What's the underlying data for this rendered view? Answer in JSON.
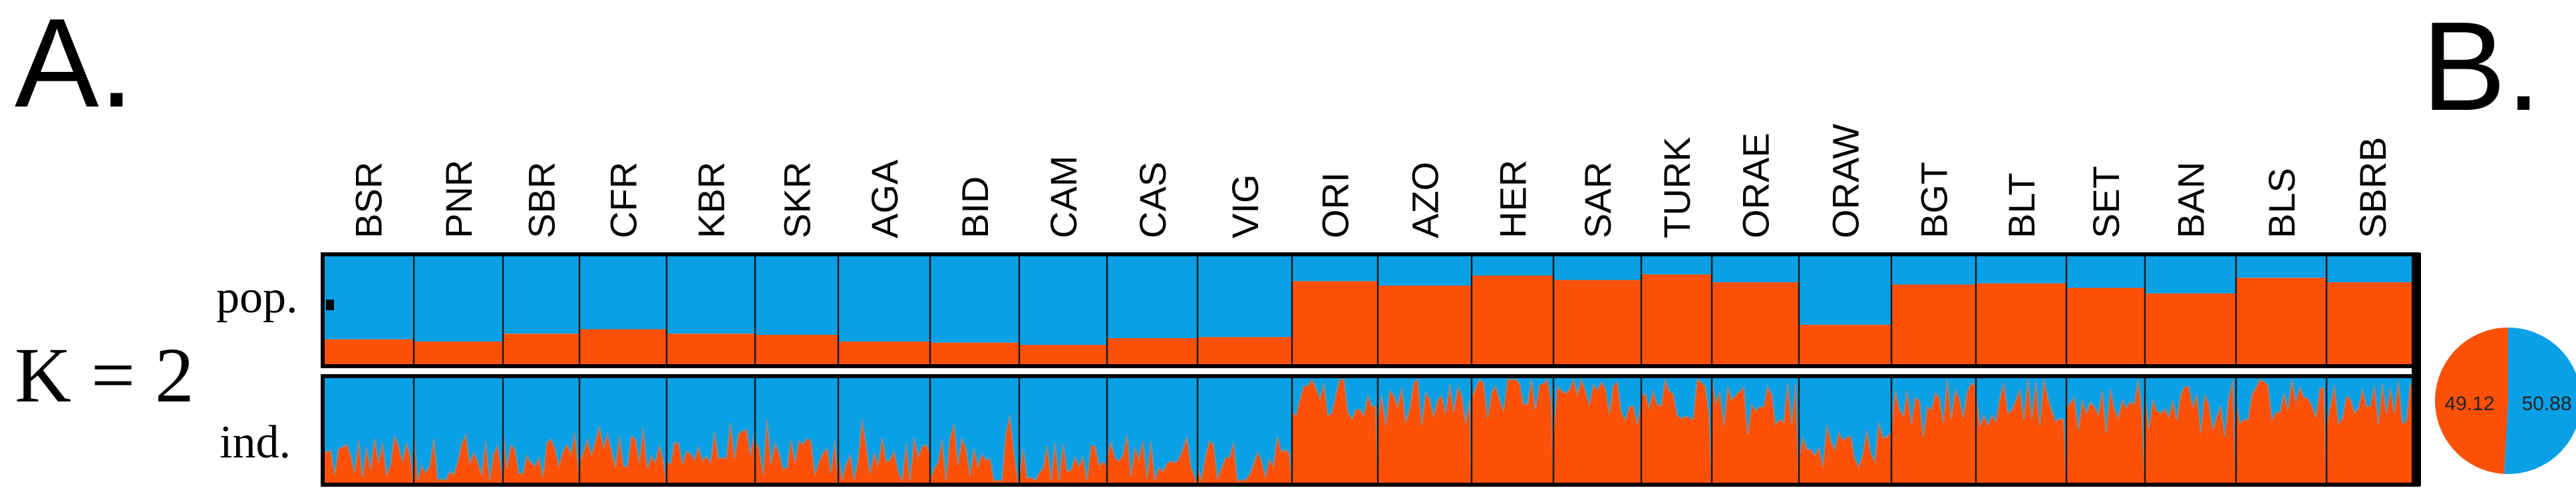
{
  "panel_a_letter": "A.",
  "panel_b_letter": "B.",
  "k_label": "K = 2",
  "pop_label": "pop.",
  "ind_label": "ind.",
  "colors": {
    "cluster1": "#0aa0e6",
    "cluster2": "#ff5008",
    "frame": "#000000",
    "divider": "#1a1a1a"
  },
  "chart_data": [
    {
      "type": "bar",
      "subtype": "stacked-admixture-population",
      "categories": [
        "BSR",
        "PNR",
        "SBR",
        "CFR",
        "KBR",
        "SKR",
        "AGA",
        "BID",
        "CAM",
        "CAS",
        "VIG",
        "ORI",
        "AZO",
        "HER",
        "SAR",
        "TURK",
        "ORAE",
        "ORAW",
        "BGT",
        "BLT",
        "SET",
        "BAN",
        "BLS",
        "SBRB"
      ],
      "series": [
        {
          "values": [
            0.24,
            0.22,
            0.29,
            0.33,
            0.29,
            0.28,
            0.22,
            0.21,
            0.19,
            0.25,
            0.26,
            0.76,
            0.72,
            0.81,
            0.77,
            0.82,
            0.75,
            0.37,
            0.73,
            0.74,
            0.7,
            0.65,
            0.79,
            0.75
          ]
        },
        {
          "values": [
            0.76,
            0.78,
            0.71,
            0.67,
            0.71,
            0.72,
            0.78,
            0.79,
            0.81,
            0.75,
            0.74,
            0.24,
            0.28,
            0.19,
            0.23,
            0.18,
            0.25,
            0.63,
            0.27,
            0.26,
            0.3,
            0.35,
            0.21,
            0.25
          ]
        }
      ],
      "ylim": [
        0,
        1
      ]
    },
    {
      "type": "bar",
      "subtype": "stacked-admixture-individual",
      "categories": [
        "BSR",
        "PNR",
        "SBR",
        "CFR",
        "KBR",
        "SKR",
        "AGA",
        "BID",
        "CAM",
        "CAS",
        "VIG",
        "ORI",
        "AZO",
        "HER",
        "SAR",
        "TURK",
        "ORAE",
        "ORAW",
        "BGT",
        "BLT",
        "SET",
        "BAN",
        "BLS",
        "SBRB"
      ],
      "series": [
        {
          "values": [
            0.24,
            0.22,
            0.29,
            0.33,
            0.29,
            0.28,
            0.22,
            0.21,
            0.19,
            0.25,
            0.26,
            0.76,
            0.72,
            0.81,
            0.77,
            0.82,
            0.75,
            0.37,
            0.73,
            0.74,
            0.7,
            0.65,
            0.79,
            0.75
          ]
        }
      ],
      "ylim": [
        0,
        1
      ]
    },
    {
      "type": "pie",
      "labels": [
        "49.12",
        "50.88"
      ],
      "values": [
        49.12,
        50.88
      ]
    }
  ]
}
